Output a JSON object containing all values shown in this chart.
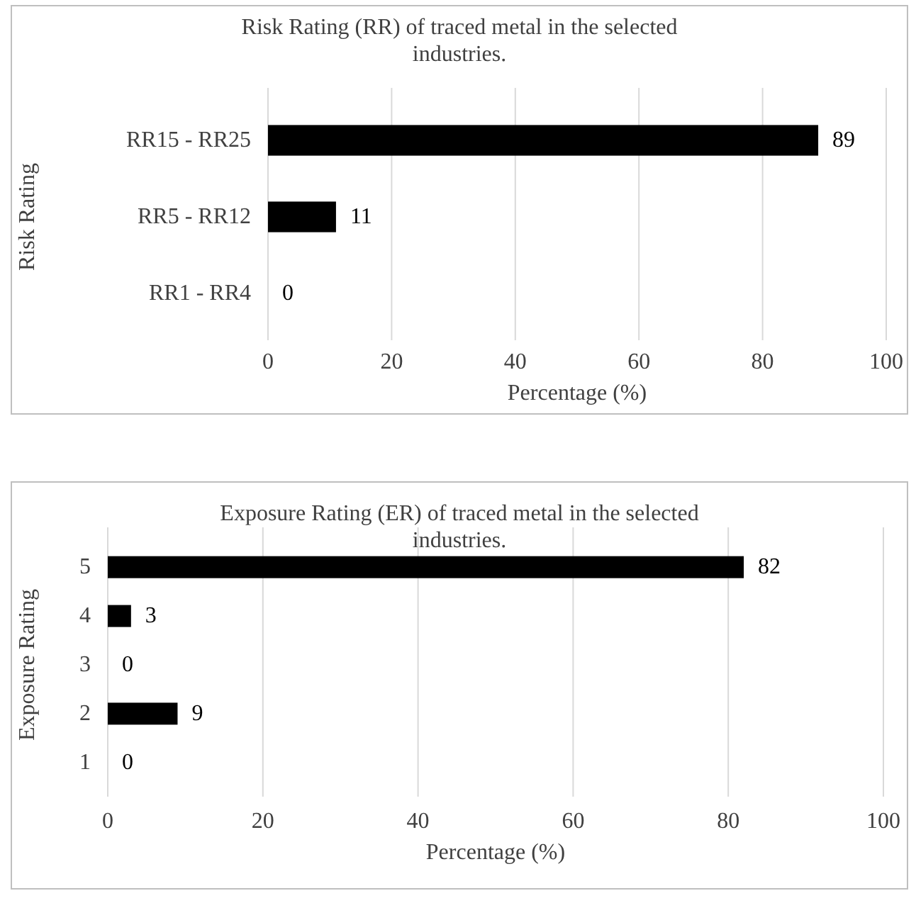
{
  "chart_data": [
    {
      "type": "bar",
      "orientation": "horizontal",
      "title": "Risk Rating (RR) of traced metal in the selected industries.",
      "xlabel": "Percentage (%)",
      "ylabel": "Risk Rating",
      "categories": [
        "RR15 - RR25",
        "RR5 - RR12",
        "RR1 - RR4"
      ],
      "values": [
        89,
        11,
        0
      ],
      "color": "#000000",
      "xlim": [
        0,
        100
      ],
      "xticks": [
        0,
        20,
        40,
        60,
        80,
        100
      ],
      "grid": "x",
      "data_labels": true
    },
    {
      "type": "bar",
      "orientation": "horizontal",
      "title": "Exposure Rating (ER) of traced metal in the selected industries.",
      "xlabel": "Percentage (%)",
      "ylabel": "Exposure Rating",
      "categories": [
        "5",
        "4",
        "3",
        "2",
        "1"
      ],
      "values": [
        82,
        3,
        0,
        9,
        0
      ],
      "color": "#000000",
      "xlim": [
        0,
        100
      ],
      "xticks": [
        0,
        20,
        40,
        60,
        80,
        100
      ],
      "grid": "x",
      "data_labels": true
    }
  ]
}
